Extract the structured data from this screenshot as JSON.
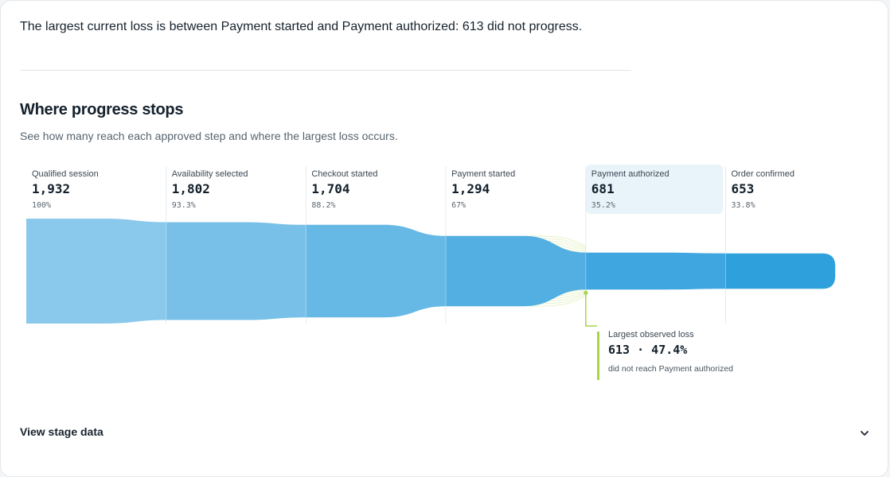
{
  "summary": {
    "text": "The largest current loss is between Payment started and Payment authorized: 613 did not progress."
  },
  "section": {
    "title": "Where progress stops",
    "subtitle": "See how many reach each approved step and where the largest loss occurs."
  },
  "chart_data": {
    "type": "funnel",
    "stages": [
      {
        "label": "Qualified session",
        "count_label": "1,932",
        "value": 1932,
        "pct": "100%",
        "color": "#8ac9eb"
      },
      {
        "label": "Availability selected",
        "count_label": "1,802",
        "value": 1802,
        "pct": "93.3%",
        "color": "#79c0e8"
      },
      {
        "label": "Checkout started",
        "count_label": "1,704",
        "value": 1704,
        "pct": "88.2%",
        "color": "#66b8e5"
      },
      {
        "label": "Payment started",
        "count_label": "1,294",
        "value": 1294,
        "pct": "67%",
        "color": "#53afe2"
      },
      {
        "label": "Payment authorized",
        "count_label": "681",
        "value": 681,
        "pct": "35.2%",
        "color": "#3fa6df",
        "highlight": true
      },
      {
        "label": "Order confirmed",
        "count_label": "653",
        "value": 653,
        "pct": "33.8%",
        "color": "#2ea0dc"
      }
    ],
    "largest_loss": {
      "title": "Largest observed loss",
      "value_label": "613 · 47.4%",
      "count": 613,
      "percent": 47.4,
      "description": "did not reach Payment authorized",
      "from_stage": "Payment started",
      "to_stage": "Payment authorized",
      "color": "#a8d44a"
    }
  },
  "footer": {
    "view_stage_label": "View stage data"
  },
  "icons": {
    "expand": "chevron-down-icon"
  }
}
